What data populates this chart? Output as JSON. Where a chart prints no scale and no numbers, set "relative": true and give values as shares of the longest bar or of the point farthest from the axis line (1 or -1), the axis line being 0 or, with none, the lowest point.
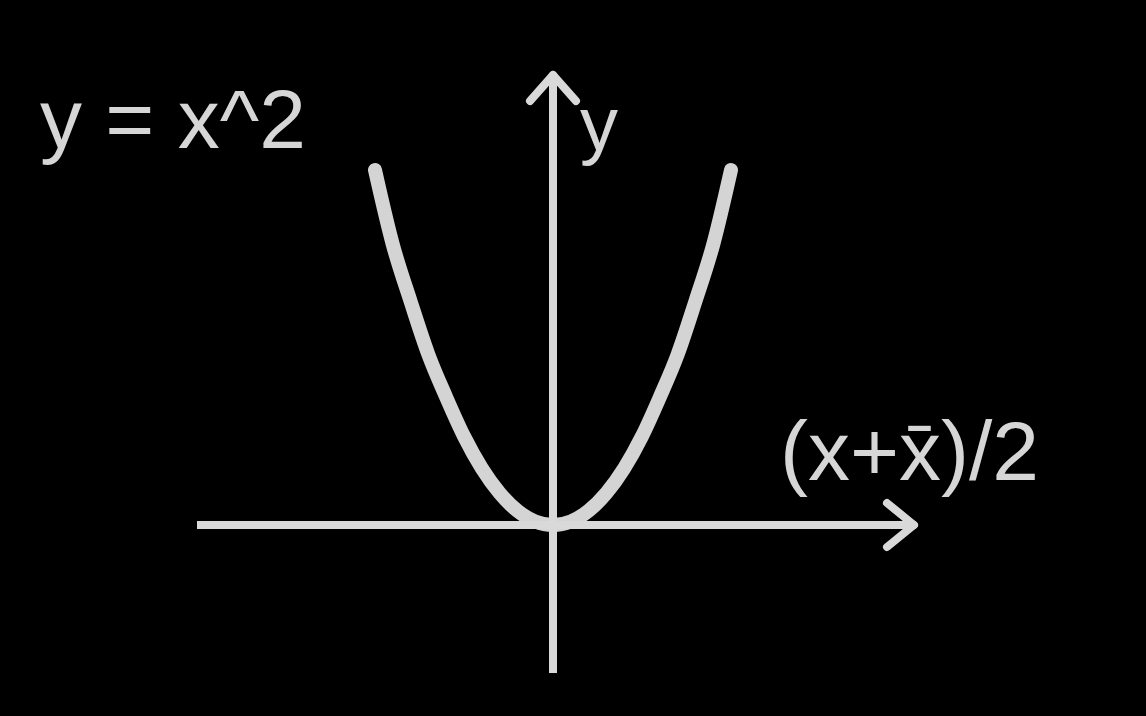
{
  "chart_data": {
    "type": "line",
    "title": "y = x^2",
    "xlabel": "(x+x̄)/2",
    "ylabel": "y",
    "relative": true,
    "categories": [
      null,
      null,
      null,
      null,
      null,
      null,
      null,
      null,
      null,
      null,
      null,
      null,
      null,
      null,
      null,
      null,
      null,
      null,
      null,
      null,
      null
    ],
    "series": [
      {
        "color": "#d4d4d4",
        "values": [
          1.0,
          0.79,
          0.63,
          0.48,
          0.36,
          0.25,
          0.16,
          0.09,
          0.04,
          0.01,
          0.0,
          0.01,
          0.04,
          0.09,
          0.16,
          0.25,
          0.36,
          0.48,
          0.63,
          0.79,
          1.0
        ]
      }
    ]
  }
}
